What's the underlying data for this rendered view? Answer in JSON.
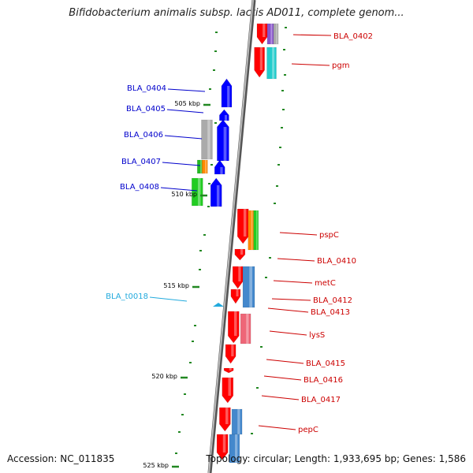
{
  "header": {
    "title": "Bifidobacterium animalis subsp. lactis AD011, complete genom..."
  },
  "footer": {
    "accession": "Accession: NC_011835",
    "topology": "Topology: circular; Length: 1,933,695 bp; Genes: 1,586"
  },
  "colors": {
    "forward_label": "#cc0000",
    "reverse_label": "#0000cc",
    "trna_label": "#22aadd",
    "backbone": "#888888",
    "tick": "#228822"
  },
  "kbp_ticks": [
    "505 kbp",
    "510 kbp",
    "515 kbp",
    "520 kbp",
    "525 kbp"
  ],
  "forward_labels": [
    "BLA_0402",
    "pgm",
    "pspC",
    "BLA_0410",
    "metC",
    "BLA_0412",
    "BLA_0413",
    "lysS",
    "BLA_0415",
    "BLA_0416",
    "BLA_0417",
    "pepC"
  ],
  "reverse_labels": [
    "BLA_0404",
    "BLA_0405",
    "BLA_0406",
    "BLA_0407",
    "BLA_0408"
  ],
  "trna_labels": [
    "BLA_t0018"
  ]
}
